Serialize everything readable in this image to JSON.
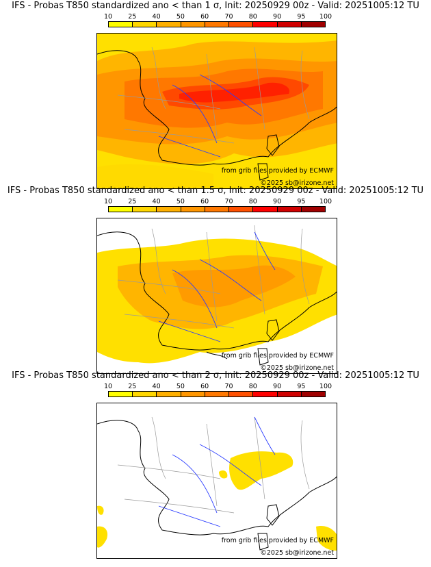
{
  "panels": [
    {
      "title": "IFS - Probas T850  standardized ano < than 1 σ, Init: 20250929 00z - Valid: 20251005:12 TU",
      "sigma": "1",
      "level": "high"
    },
    {
      "title": "IFS - Probas T850  standardized ano < than 1.5 σ, Init: 20250929 00z - Valid: 20251005:12 TU",
      "sigma": "1.5",
      "level": "medium"
    },
    {
      "title": "IFS - Probas T850  standardized ano < than 2 σ, Init: 20250929 00z - Valid: 20251005:12 TU",
      "sigma": "2",
      "level": "low"
    }
  ],
  "colorbar": {
    "ticks": [
      "10",
      "25",
      "40",
      "50",
      "60",
      "70",
      "80",
      "90",
      "95",
      "100"
    ],
    "colors": [
      "#ffff00",
      "#ffd700",
      "#ffb000",
      "#ff9600",
      "#ff7800",
      "#ff5000",
      "#ff0000",
      "#d00000",
      "#a00000",
      "#600000"
    ]
  },
  "credits": {
    "source": "from grib files provided by ECMWF",
    "copyright": "©2025 sb@irizone.net"
  },
  "colors": {
    "coast": "#000000",
    "rivers": "#2a3cff",
    "borders": "#9a9a9a"
  }
}
